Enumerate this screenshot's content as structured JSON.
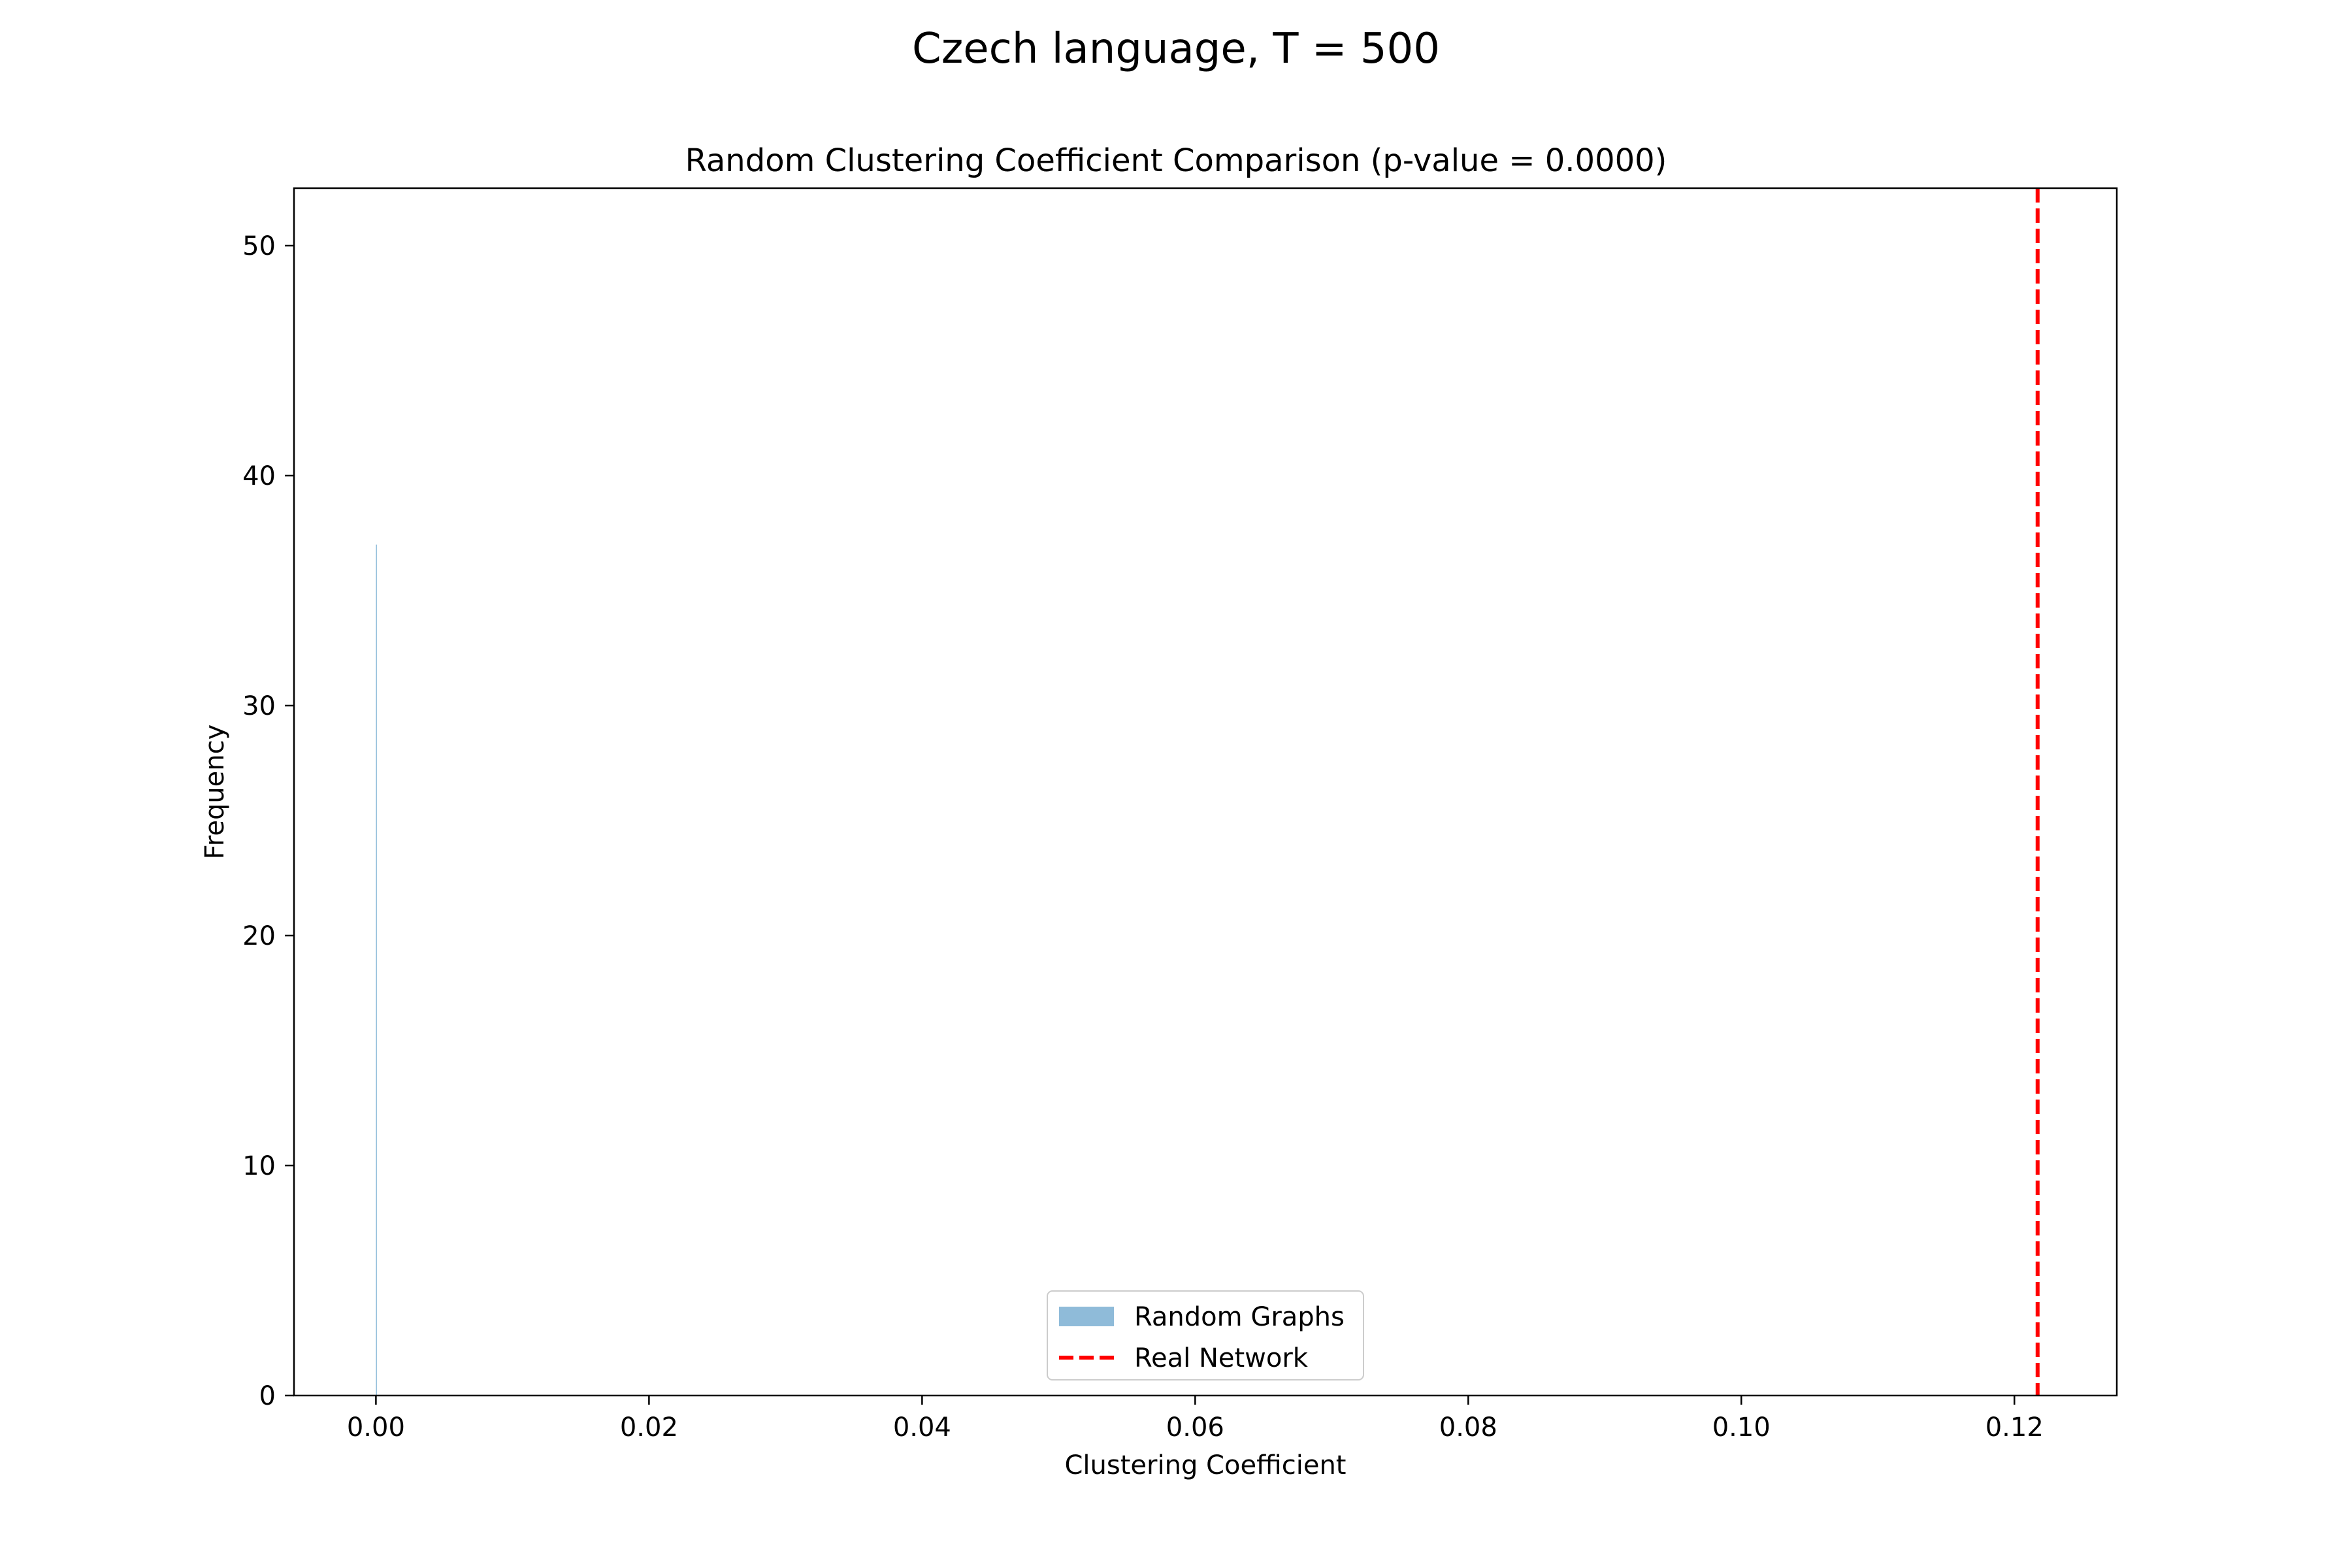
{
  "figure": {
    "suptitle": "Czech language, T = 500"
  },
  "chart_data": {
    "type": "bar",
    "title": "Random Clustering Coefficient Comparison (p-value = 0.0000)",
    "xlabel": "Clustering Coefficient",
    "ylabel": "Frequency",
    "xlim": [
      -0.006,
      0.1275
    ],
    "ylim": [
      0,
      52.5
    ],
    "xticks": [
      0.0,
      0.02,
      0.04,
      0.06,
      0.08,
      0.1,
      0.12
    ],
    "xtick_labels": [
      "0.00",
      "0.02",
      "0.04",
      "0.06",
      "0.08",
      "0.10",
      "0.12"
    ],
    "yticks": [
      0,
      10,
      20,
      30,
      40,
      50
    ],
    "ytick_labels": [
      "0",
      "10",
      "20",
      "30",
      "40",
      "50"
    ],
    "grid": false,
    "legend_position": "lower center",
    "series": [
      {
        "name": "Random Graphs",
        "kind": "histogram",
        "color": "#1f77b4",
        "alpha": 0.5,
        "bins": [
          {
            "x0": 0.0,
            "x1": 3e-05,
            "count": 37
          }
        ]
      },
      {
        "name": "Real Network",
        "kind": "vline",
        "color": "#ff0000",
        "linestyle": "dashed",
        "x": 0.1217
      }
    ]
  }
}
